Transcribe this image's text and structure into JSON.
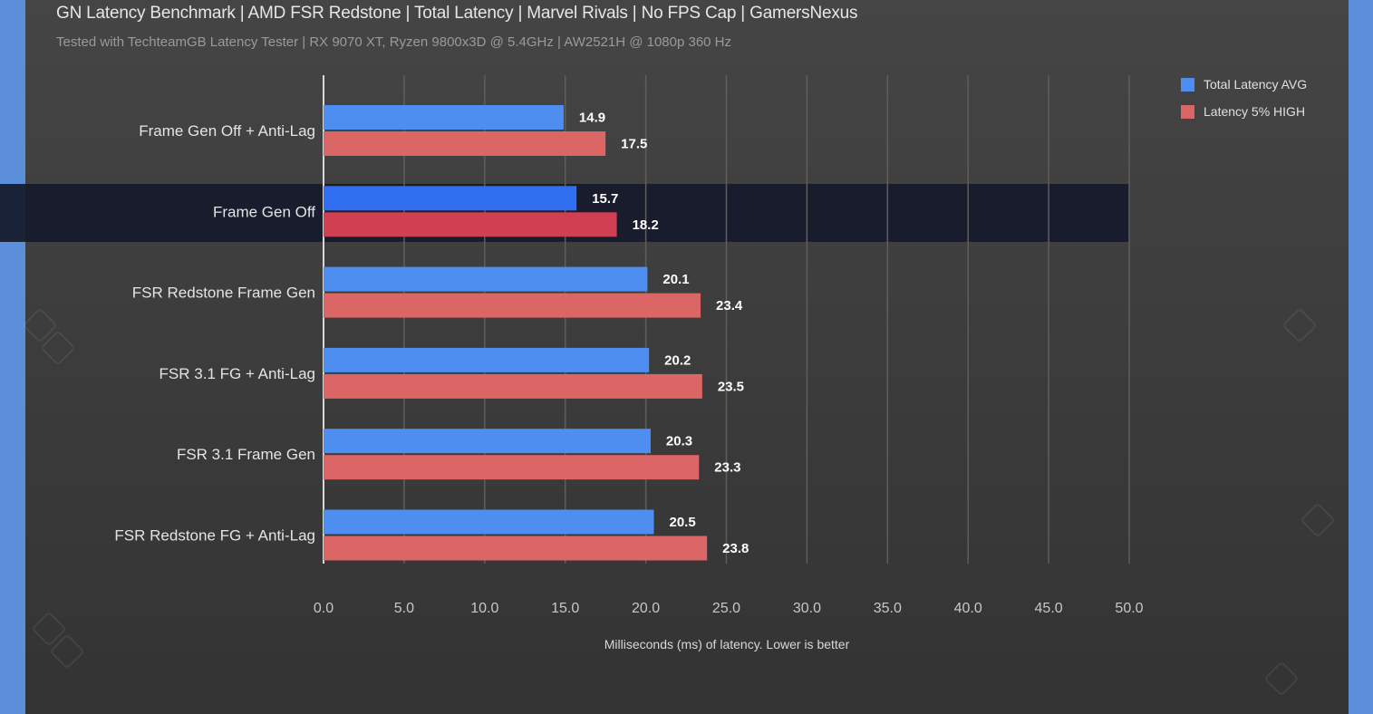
{
  "chart_data": {
    "type": "bar",
    "orientation": "horizontal",
    "title": "GN Latency Benchmark | AMD FSR Redstone | Total Latency | Marvel Rivals | No FPS Cap | GamersNexus",
    "subtitle": "Tested with TechteamGB Latency Tester | RX 9070 XT, Ryzen 9800x3D @ 5.4GHz | AW2521H @ 1080p 360 Hz",
    "xlabel": "Milliseconds (ms) of latency. Lower is better",
    "ylabel": "",
    "xlim": [
      0,
      50
    ],
    "xticks": [
      "0.0",
      "5.0",
      "10.0",
      "15.0",
      "20.0",
      "25.0",
      "30.0",
      "35.0",
      "40.0",
      "45.0",
      "50.0"
    ],
    "grid": true,
    "legend_position": "top-right",
    "highlighted_category": "Frame Gen Off",
    "categories": [
      "Frame Gen Off + Anti-Lag",
      "Frame Gen Off",
      "FSR Redstone Frame Gen",
      "FSR 3.1 FG + Anti-Lag",
      "FSR 3.1 Frame Gen",
      "FSR Redstone FG + Anti-Lag"
    ],
    "series": [
      {
        "name": "Total Latency AVG",
        "color": "#4d8ef0",
        "highlight_color": "#2f6ff0",
        "values": [
          14.9,
          15.7,
          20.1,
          20.2,
          20.3,
          20.5
        ],
        "labels": [
          "14.9",
          "15.7",
          "20.1",
          "20.2",
          "20.3",
          "20.5"
        ]
      },
      {
        "name": "Latency 5% HIGH",
        "color": "#dc6566",
        "highlight_color": "#d03f52",
        "values": [
          17.5,
          18.2,
          23.4,
          23.5,
          23.3,
          23.8
        ],
        "labels": [
          "17.5",
          "18.2",
          "23.4",
          "23.5",
          "23.3",
          "23.8"
        ]
      }
    ]
  }
}
